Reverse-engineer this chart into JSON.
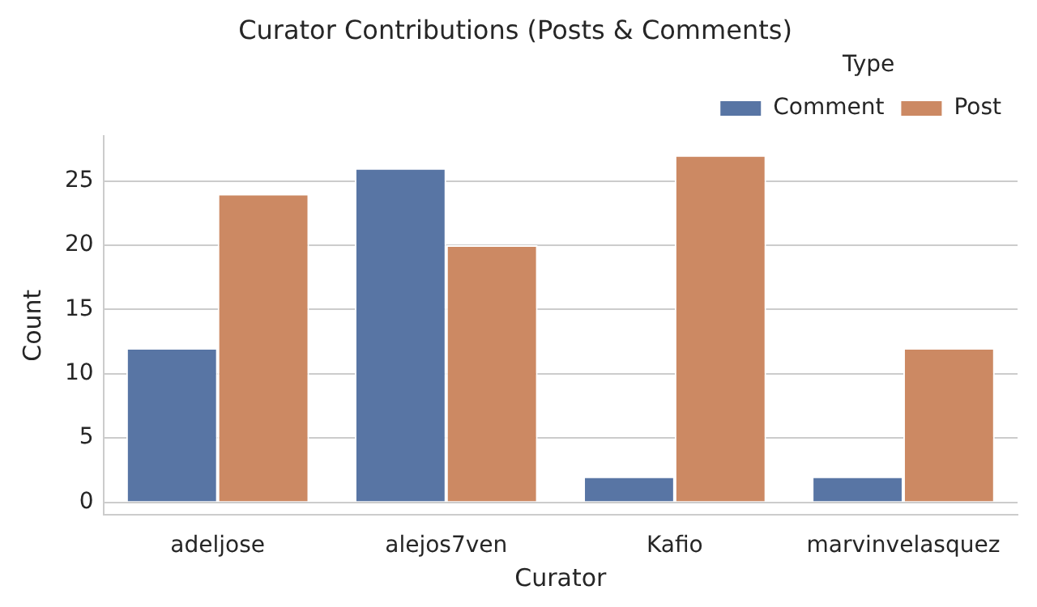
{
  "chart_data": {
    "type": "bar",
    "title": "Curator Contributions (Posts & Comments)",
    "xlabel": "Curator",
    "ylabel": "Count",
    "legend_title": "Type",
    "categories": [
      "adeljose",
      "alejos7ven",
      "Kafio",
      "marvinvelasquez"
    ],
    "series": [
      {
        "name": "Comment",
        "color": "#5875a4",
        "values": [
          12,
          26,
          2,
          2
        ]
      },
      {
        "name": "Post",
        "color": "#cc8963",
        "values": [
          24,
          20,
          27,
          12
        ]
      }
    ],
    "ylim": [
      -1,
      28.5
    ],
    "yticks": [
      0,
      5,
      10,
      15,
      20,
      25
    ],
    "grid": "y",
    "legend": "top right"
  }
}
